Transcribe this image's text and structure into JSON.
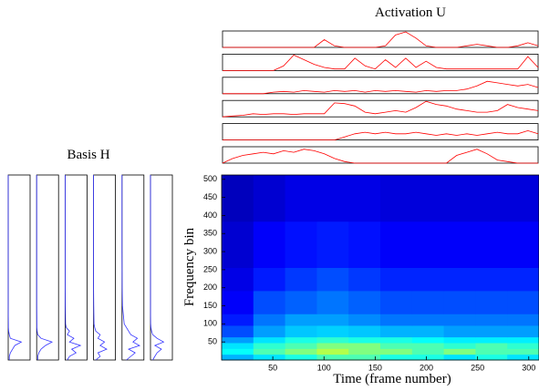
{
  "chart_data": [
    {
      "type": "line",
      "title": "Activation U",
      "color": "#ff0000",
      "xlim": [
        0,
        310
      ],
      "ylim": [
        0,
        1
      ],
      "x": [
        0,
        10,
        20,
        30,
        40,
        50,
        60,
        70,
        80,
        90,
        100,
        110,
        120,
        130,
        140,
        150,
        160,
        170,
        180,
        190,
        200,
        210,
        220,
        230,
        240,
        250,
        260,
        270,
        280,
        290,
        300,
        310
      ],
      "series": [
        {
          "values": [
            0,
            0,
            0,
            0,
            0,
            0,
            0,
            0,
            0,
            0,
            0.5,
            0.1,
            0,
            0,
            0,
            0,
            0.1,
            0.8,
            1.0,
            0.6,
            0.1,
            0,
            0,
            0,
            0.1,
            0.2,
            0.1,
            0,
            0,
            0.1,
            0.3,
            0.1
          ]
        },
        {
          "values": [
            0,
            0,
            0,
            0,
            0,
            0,
            0.3,
            1.0,
            0.7,
            0.4,
            0.2,
            0.1,
            0.1,
            0.8,
            0.3,
            0.1,
            0.7,
            0.2,
            0.8,
            0.2,
            0.6,
            0.2,
            0.1,
            0.1,
            0.1,
            0.1,
            0.1,
            0.1,
            0.1,
            0.1,
            0.9,
            0.2
          ]
        },
        {
          "values": [
            0,
            0,
            0,
            0,
            0,
            0.1,
            0.15,
            0.1,
            0.2,
            0.15,
            0.1,
            0.2,
            0.15,
            0.2,
            0.1,
            0.2,
            0.15,
            0.2,
            0.15,
            0.1,
            0.2,
            0.15,
            0.2,
            0.2,
            0.3,
            0.5,
            0.8,
            0.7,
            0.6,
            0.5,
            0.6,
            0.4
          ]
        },
        {
          "values": [
            0,
            0.05,
            0.1,
            0.2,
            0.15,
            0.2,
            0.2,
            0.15,
            0.2,
            0.2,
            0.2,
            0.9,
            0.85,
            0.7,
            0.3,
            0.2,
            0.3,
            0.4,
            0.3,
            0.6,
            1.0,
            0.8,
            0.7,
            0.5,
            0.4,
            0.3,
            0.3,
            0.4,
            0.8,
            0.6,
            0.5,
            0.4
          ]
        },
        {
          "values": [
            0,
            0,
            0,
            0,
            0,
            0,
            0,
            0,
            0,
            0,
            0,
            0,
            0.2,
            0.4,
            0.5,
            0.4,
            0.5,
            0.4,
            0.4,
            0.5,
            0.4,
            0.3,
            0.4,
            0.3,
            0.4,
            0.3,
            0.4,
            0.5,
            0.4,
            0.4,
            0.6,
            0.4
          ]
        },
        {
          "values": [
            0,
            0.3,
            0.5,
            0.6,
            0.7,
            0.6,
            0.8,
            0.7,
            0.9,
            0.8,
            0.6,
            0.3,
            0.1,
            0,
            0,
            0,
            0,
            0,
            0,
            0,
            0,
            0,
            0,
            0.5,
            0.7,
            0.9,
            0.6,
            0.2,
            0.1,
            0,
            0,
            0
          ]
        }
      ]
    },
    {
      "type": "vline",
      "title": "Basis H",
      "color": "#3333ff",
      "xlim": [
        0,
        1
      ],
      "ylim": [
        0,
        512
      ],
      "y": [
        0,
        10,
        20,
        30,
        40,
        50,
        60,
        70,
        80,
        90,
        100,
        150,
        200,
        300,
        400,
        512
      ],
      "series": [
        {
          "values": [
            0.05,
            0.05,
            0.1,
            0.2,
            0.3,
            0.6,
            0.1,
            0.05,
            0.02,
            0.01,
            0.01,
            0,
            0,
            0,
            0,
            0
          ]
        },
        {
          "values": [
            0.05,
            0.05,
            0.1,
            0.2,
            0.4,
            0.7,
            0.2,
            0.05,
            0.02,
            0.01,
            0.01,
            0,
            0,
            0,
            0,
            0
          ]
        },
        {
          "values": [
            0.1,
            0.2,
            0.5,
            0.3,
            0.7,
            0.2,
            0.4,
            0.1,
            0.2,
            0.05,
            0.02,
            0.01,
            0,
            0,
            0,
            0
          ]
        },
        {
          "values": [
            0.1,
            0.3,
            0.2,
            0.6,
            0.3,
            0.5,
            0.2,
            0.3,
            0.1,
            0.05,
            0.02,
            0.01,
            0,
            0,
            0,
            0
          ]
        },
        {
          "values": [
            0.2,
            0.4,
            0.6,
            0.3,
            0.8,
            0.5,
            0.7,
            0.4,
            0.3,
            0.2,
            0.1,
            0.02,
            0.01,
            0,
            0,
            0
          ]
        },
        {
          "values": [
            0.1,
            0.2,
            0.3,
            0.5,
            0.2,
            0.6,
            0.3,
            0.1,
            0.05,
            0.02,
            0.01,
            0,
            0,
            0,
            0,
            0
          ]
        }
      ]
    },
    {
      "type": "heatmap",
      "xlabel": "Time (frame number)",
      "ylabel": "Frequency bin",
      "xlim": [
        0,
        310
      ],
      "ylim": [
        0,
        512
      ],
      "zlim": [
        0,
        1
      ],
      "xticks": [
        50,
        100,
        150,
        200,
        250,
        300
      ],
      "yticks": [
        50,
        100,
        150,
        200,
        250,
        300,
        350,
        400,
        450,
        500
      ],
      "xbins": [
        0,
        31,
        62,
        93,
        124,
        155,
        186,
        217,
        248,
        279,
        310
      ],
      "ybins": [
        0,
        16,
        32,
        48,
        64,
        96,
        128,
        192,
        256,
        384,
        512
      ],
      "z": [
        [
          0.3,
          0.35,
          0.4,
          0.45,
          0.45,
          0.4,
          0.4,
          0.35,
          0.4,
          0.35
        ],
        [
          0.38,
          0.45,
          0.5,
          0.55,
          0.5,
          0.5,
          0.45,
          0.5,
          0.45,
          0.45
        ],
        [
          0.35,
          0.42,
          0.45,
          0.5,
          0.5,
          0.45,
          0.45,
          0.42,
          0.45,
          0.42
        ],
        [
          0.28,
          0.35,
          0.4,
          0.42,
          0.4,
          0.4,
          0.38,
          0.36,
          0.36,
          0.36
        ],
        [
          0.2,
          0.28,
          0.32,
          0.33,
          0.32,
          0.3,
          0.3,
          0.28,
          0.28,
          0.28
        ],
        [
          0.15,
          0.24,
          0.28,
          0.28,
          0.26,
          0.24,
          0.24,
          0.24,
          0.24,
          0.24
        ],
        [
          0.12,
          0.2,
          0.22,
          0.24,
          0.22,
          0.2,
          0.2,
          0.2,
          0.2,
          0.2
        ],
        [
          0.1,
          0.15,
          0.18,
          0.2,
          0.18,
          0.16,
          0.16,
          0.16,
          0.16,
          0.16
        ],
        [
          0.08,
          0.12,
          0.14,
          0.15,
          0.14,
          0.12,
          0.12,
          0.12,
          0.12,
          0.12
        ],
        [
          0.06,
          0.08,
          0.1,
          0.1,
          0.1,
          0.09,
          0.09,
          0.09,
          0.09,
          0.09
        ]
      ]
    }
  ]
}
